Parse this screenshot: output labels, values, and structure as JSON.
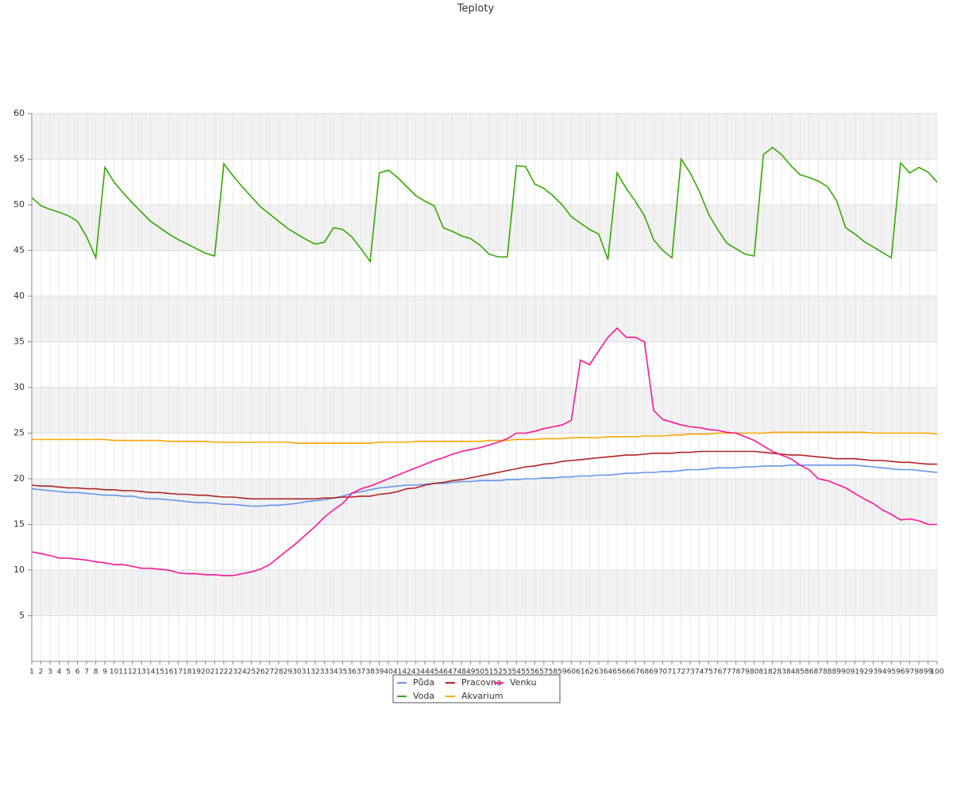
{
  "chart_data": {
    "type": "line",
    "title": "Teploty",
    "categories": [
      1,
      2,
      3,
      4,
      5,
      6,
      7,
      8,
      9,
      10,
      11,
      12,
      13,
      14,
      15,
      16,
      17,
      18,
      19,
      20,
      21,
      22,
      23,
      24,
      25,
      26,
      27,
      28,
      29,
      30,
      31,
      32,
      33,
      34,
      35,
      36,
      37,
      38,
      39,
      40,
      41,
      42,
      43,
      44,
      45,
      46,
      47,
      48,
      49,
      50,
      51,
      52,
      53,
      54,
      55,
      56,
      57,
      58,
      59,
      60,
      61,
      62,
      63,
      64,
      65,
      66,
      67,
      68,
      69,
      70,
      71,
      72,
      73,
      74,
      75,
      76,
      77,
      78,
      79,
      80,
      81,
      82,
      83,
      84,
      85,
      86,
      87,
      88,
      89,
      90,
      91,
      92,
      93,
      94,
      95,
      96,
      97,
      98,
      99,
      100
    ],
    "ylim": [
      0,
      60
    ],
    "yticks": [
      5,
      10,
      15,
      20,
      25,
      30,
      35,
      40,
      45,
      50,
      55,
      60
    ],
    "grid": true,
    "series": [
      {
        "name": "Půda",
        "color": "#6495ed",
        "values": [
          18.9,
          18.8,
          18.7,
          18.6,
          18.5,
          18.5,
          18.4,
          18.3,
          18.2,
          18.2,
          18.1,
          18.1,
          17.9,
          17.8,
          17.8,
          17.7,
          17.6,
          17.5,
          17.4,
          17.4,
          17.3,
          17.2,
          17.2,
          17.1,
          17.0,
          17.0,
          17.1,
          17.1,
          17.2,
          17.3,
          17.5,
          17.6,
          17.7,
          17.9,
          18.1,
          18.4,
          18.6,
          18.8,
          19.0,
          19.1,
          19.2,
          19.3,
          19.3,
          19.4,
          19.5,
          19.5,
          19.6,
          19.7,
          19.7,
          19.8,
          19.8,
          19.8,
          19.9,
          19.9,
          20.0,
          20.0,
          20.1,
          20.1,
          20.2,
          20.2,
          20.3,
          20.3,
          20.4,
          20.4,
          20.5,
          20.6,
          20.6,
          20.7,
          20.7,
          20.8,
          20.8,
          20.9,
          21.0,
          21.0,
          21.1,
          21.2,
          21.2,
          21.2,
          21.3,
          21.3,
          21.4,
          21.4,
          21.4,
          21.5,
          21.5,
          21.5,
          21.5,
          21.5,
          21.5,
          21.5,
          21.5,
          21.4,
          21.3,
          21.2,
          21.1,
          21.0,
          21.0,
          20.9,
          20.8,
          20.7
        ]
      },
      {
        "name": "Voda",
        "color": "#33aa00",
        "values": [
          50.8,
          49.9,
          49.5,
          49.2,
          48.8,
          48.2,
          46.5,
          44.2,
          54.1,
          52.5,
          51.3,
          50.2,
          49.2,
          48.2,
          47.5,
          46.8,
          46.2,
          45.7,
          45.2,
          44.7,
          44.4,
          54.5,
          53.2,
          52.0,
          50.9,
          49.8,
          49.0,
          48.2,
          47.4,
          46.8,
          46.2,
          45.7,
          45.9,
          47.5,
          47.3,
          46.5,
          45.2,
          43.8,
          53.5,
          53.8,
          53.0,
          52.0,
          51.0,
          50.4,
          49.9,
          47.5,
          47.1,
          46.6,
          46.3,
          45.6,
          44.6,
          44.3,
          44.3,
          54.3,
          54.2,
          52.3,
          51.8,
          51.0,
          50.0,
          48.7,
          48.0,
          47.3,
          46.8,
          44.0,
          53.5,
          51.8,
          50.4,
          48.8,
          46.2,
          45.0,
          44.2,
          55.0,
          53.5,
          51.5,
          49.0,
          47.3,
          45.8,
          45.2,
          44.6,
          44.4,
          55.5,
          56.3,
          55.5,
          54.3,
          53.3,
          53.0,
          52.6,
          52.0,
          50.5,
          47.5,
          46.8,
          46.0,
          45.4,
          44.8,
          44.2,
          54.6,
          53.5,
          54.1,
          53.6,
          52.5
        ]
      },
      {
        "name": "Pracovna",
        "color": "#b22222",
        "values": [
          19.3,
          19.2,
          19.2,
          19.1,
          19.0,
          19.0,
          18.9,
          18.9,
          18.8,
          18.8,
          18.7,
          18.7,
          18.6,
          18.5,
          18.5,
          18.4,
          18.3,
          18.3,
          18.2,
          18.2,
          18.1,
          18.0,
          18.0,
          17.9,
          17.8,
          17.8,
          17.8,
          17.8,
          17.8,
          17.8,
          17.8,
          17.8,
          17.9,
          17.9,
          18.0,
          18.0,
          18.1,
          18.1,
          18.3,
          18.4,
          18.6,
          18.9,
          19.0,
          19.3,
          19.5,
          19.6,
          19.8,
          19.9,
          20.1,
          20.3,
          20.5,
          20.7,
          20.9,
          21.1,
          21.3,
          21.4,
          21.6,
          21.7,
          21.9,
          22.0,
          22.1,
          22.2,
          22.3,
          22.4,
          22.5,
          22.6,
          22.6,
          22.7,
          22.8,
          22.8,
          22.8,
          22.9,
          22.9,
          23.0,
          23.0,
          23.0,
          23.0,
          23.0,
          23.0,
          23.0,
          22.9,
          22.8,
          22.7,
          22.6,
          22.6,
          22.5,
          22.4,
          22.3,
          22.2,
          22.2,
          22.2,
          22.1,
          22.0,
          22.0,
          21.9,
          21.8,
          21.8,
          21.7,
          21.6,
          21.6
        ]
      },
      {
        "name": "Akvarium",
        "color": "#ffa500",
        "values": [
          24.3,
          24.3,
          24.3,
          24.3,
          24.3,
          24.3,
          24.3,
          24.3,
          24.3,
          24.2,
          24.2,
          24.2,
          24.2,
          24.2,
          24.2,
          24.1,
          24.1,
          24.1,
          24.1,
          24.1,
          24.0,
          24.0,
          24.0,
          24.0,
          24.0,
          24.0,
          24.0,
          24.0,
          24.0,
          23.9,
          23.9,
          23.9,
          23.9,
          23.9,
          23.9,
          23.9,
          23.9,
          23.9,
          24.0,
          24.0,
          24.0,
          24.0,
          24.1,
          24.1,
          24.1,
          24.1,
          24.1,
          24.1,
          24.1,
          24.1,
          24.2,
          24.2,
          24.2,
          24.3,
          24.3,
          24.3,
          24.4,
          24.4,
          24.4,
          24.5,
          24.5,
          24.5,
          24.5,
          24.6,
          24.6,
          24.6,
          24.6,
          24.7,
          24.7,
          24.7,
          24.8,
          24.8,
          24.9,
          24.9,
          24.9,
          25.0,
          25.0,
          25.0,
          25.0,
          25.0,
          25.0,
          25.1,
          25.1,
          25.1,
          25.1,
          25.1,
          25.1,
          25.1,
          25.1,
          25.1,
          25.1,
          25.1,
          25.0,
          25.0,
          25.0,
          25.0,
          25.0,
          25.0,
          25.0,
          24.9
        ]
      },
      {
        "name": "Venku",
        "color": "#ff1493",
        "values": [
          12.0,
          11.8,
          11.6,
          11.3,
          11.3,
          11.2,
          11.1,
          10.9,
          10.8,
          10.6,
          10.6,
          10.4,
          10.2,
          10.2,
          10.1,
          10.0,
          9.7,
          9.6,
          9.6,
          9.5,
          9.5,
          9.4,
          9.4,
          9.6,
          9.8,
          10.1,
          10.6,
          11.4,
          12.2,
          13.0,
          13.9,
          14.8,
          15.8,
          16.6,
          17.3,
          18.4,
          18.9,
          19.2,
          19.6,
          20.0,
          20.4,
          20.8,
          21.2,
          21.6,
          22.0,
          22.3,
          22.7,
          23.0,
          23.2,
          23.4,
          23.7,
          24.0,
          24.4,
          25.0,
          25.0,
          25.2,
          25.5,
          25.7,
          25.9,
          26.4,
          33.0,
          32.5,
          34.0,
          35.5,
          36.5,
          35.5,
          35.5,
          35.0,
          27.5,
          26.5,
          26.2,
          25.9,
          25.7,
          25.6,
          25.4,
          25.3,
          25.1,
          25.0,
          24.6,
          24.2,
          23.6,
          23.0,
          22.6,
          22.2,
          21.5,
          21.0,
          20.0,
          19.8,
          19.4,
          19.0,
          18.4,
          17.8,
          17.3,
          16.6,
          16.1,
          15.5,
          15.6,
          15.4,
          15.0,
          15.0
        ]
      }
    ]
  }
}
